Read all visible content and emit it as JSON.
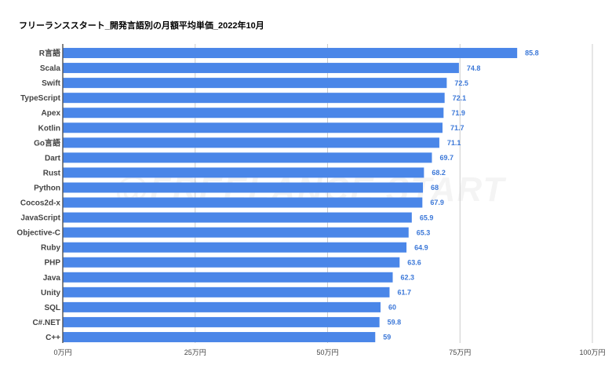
{
  "chart_data": {
    "type": "bar",
    "orientation": "horizontal",
    "title": "フリーランススタート_開発言語別の月額平均単価_2022年10月",
    "categories": [
      "R言語",
      "Scala",
      "Swift",
      "TypeScript",
      "Apex",
      "Kotlin",
      "Go言語",
      "Dart",
      "Rust",
      "Python",
      "Cocos2d-x",
      "JavaScript",
      "Objective-C",
      "Ruby",
      "PHP",
      "Java",
      "Unity",
      "SQL",
      "C#.NET",
      "C++"
    ],
    "values": [
      85.8,
      74.8,
      72.5,
      72.1,
      71.9,
      71.7,
      71.1,
      69.7,
      68.2,
      68,
      67.9,
      65.9,
      65.3,
      64.9,
      63.6,
      62.3,
      61.7,
      60,
      59.8,
      59
    ],
    "value_labels": [
      "85.8",
      "74.8",
      "72.5",
      "72.1",
      "71.9",
      "71.7",
      "71.1",
      "69.7",
      "68.2",
      "68",
      "67.9",
      "65.9",
      "65.3",
      "64.9",
      "63.6",
      "62.3",
      "61.7",
      "60",
      "59.8",
      "59"
    ],
    "xlim": [
      0,
      100
    ],
    "x_ticks": [
      0,
      25,
      50,
      75,
      100
    ],
    "x_tick_labels": [
      "0万円",
      "25万円",
      "50万円",
      "75万円",
      "100万円"
    ],
    "xlabel": "",
    "ylabel": "",
    "grid": true,
    "legend": "none",
    "watermark": "@FREELANCE START",
    "colors": {
      "bar": "#4a86e8",
      "value_label": "#3c78d8",
      "grid": "#cccccc",
      "axis": "#333333"
    }
  }
}
